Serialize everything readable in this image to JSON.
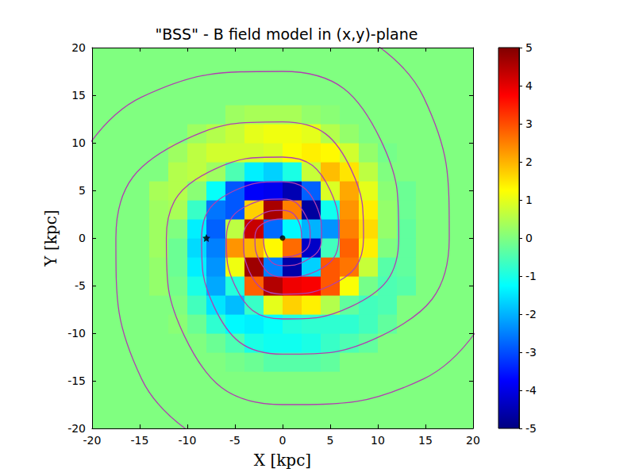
{
  "chart_data": {
    "type": "heatmap",
    "title": "\"BSS\" - B field model in (x,y)-plane",
    "x_label": "X [kpc]",
    "y_label": "Y [kpc]",
    "xlim": [
      -20,
      20
    ],
    "ylim": [
      -20,
      20
    ],
    "xticks": [
      -20,
      -15,
      -10,
      -5,
      0,
      5,
      10,
      15,
      20
    ],
    "yticks": [
      -20,
      -15,
      -10,
      -5,
      0,
      5,
      10,
      15,
      20
    ],
    "grid": false,
    "cells": {
      "x": [
        -19,
        -17,
        -15,
        -13,
        -11,
        -9,
        -7,
        -5,
        -3,
        -1,
        1,
        3,
        5,
        7,
        9,
        11,
        13,
        15,
        17,
        19
      ],
      "y": [
        -19,
        -17,
        -15,
        -13,
        -11,
        -9,
        -7,
        -5,
        -3,
        -1,
        1,
        3,
        5,
        7,
        9,
        11,
        13,
        15,
        17,
        19
      ],
      "z": [
        [
          0,
          0,
          0,
          0,
          0,
          0,
          0,
          0,
          0,
          0,
          0,
          0,
          0,
          0,
          0,
          0,
          0,
          0,
          0,
          0
        ],
        [
          0,
          0,
          0,
          0,
          0,
          0,
          0,
          0,
          0,
          0,
          0,
          0,
          0,
          0,
          0,
          0,
          0,
          0,
          0,
          0
        ],
        [
          0,
          0,
          0,
          0,
          0,
          0,
          0,
          0,
          0,
          0,
          0,
          0,
          0,
          0,
          0,
          0,
          0,
          0,
          0,
          0
        ],
        [
          0,
          0,
          0,
          0,
          0,
          0,
          0,
          -0.1,
          -0.2,
          -0.4,
          -0.4,
          -0.4,
          -0.3,
          0,
          0,
          0,
          0,
          0,
          0,
          0
        ],
        [
          0,
          0,
          0,
          0,
          0,
          0,
          -0.2,
          -0.5,
          -1.0,
          -1.1,
          -1.1,
          -1.0,
          -0.7,
          -0.5,
          -0.3,
          0,
          0,
          0,
          0,
          0
        ],
        [
          0,
          0,
          0,
          0,
          0.1,
          -0.2,
          -0.8,
          -1.3,
          -1.4,
          -1.2,
          -0.9,
          -0.8,
          -0.8,
          -0.8,
          -0.6,
          -0.3,
          0,
          0,
          0,
          0
        ],
        [
          0,
          0,
          0,
          0,
          0,
          -0.6,
          -1.5,
          -1.9,
          -0.7,
          1.0,
          1.7,
          1.4,
          0.5,
          -0.3,
          -0.6,
          -0.5,
          0,
          0,
          0,
          0
        ],
        [
          0,
          0,
          0,
          0.2,
          -0.1,
          -1.0,
          -2.1,
          -0.9,
          2.8,
          4.5,
          3.9,
          3.8,
          2.9,
          1.2,
          -0.1,
          -0.5,
          -0.4,
          0,
          0,
          0
        ],
        [
          0,
          0,
          0,
          0.2,
          -0.2,
          -1.4,
          -2.3,
          1.1,
          4.7,
          -2.5,
          -4.6,
          -1.7,
          2.9,
          2.6,
          0.7,
          -0.4,
          -0.3,
          0,
          0,
          0
        ],
        [
          0,
          0,
          0,
          0.3,
          -0.2,
          -1.6,
          -2.5,
          2.3,
          2.0,
          1.3,
          2.7,
          -4.3,
          -0.6,
          2.8,
          1.4,
          0,
          -0.3,
          0,
          0,
          0
        ],
        [
          0,
          0,
          0,
          0.3,
          0,
          -1.4,
          -2.8,
          0.6,
          4.3,
          -2.7,
          -1.3,
          -2.0,
          -2.3,
          2.5,
          1.6,
          0.2,
          -0.3,
          0,
          0,
          0
        ],
        [
          0,
          0,
          0,
          0.3,
          0.4,
          -0.7,
          -2.6,
          -2.9,
          1.7,
          4.6,
          2.5,
          -4.7,
          -1.1,
          2.3,
          1.4,
          0.2,
          -0.2,
          0,
          0,
          0
        ],
        [
          0,
          0,
          0,
          0.4,
          0.5,
          0.1,
          -1.2,
          -2.9,
          -3.8,
          -3.9,
          -4.5,
          -2.8,
          0.9,
          2.1,
          1.0,
          0.1,
          -0.2,
          0,
          0,
          0
        ],
        [
          0,
          0,
          0,
          0,
          0.5,
          0.6,
          0.3,
          -0.5,
          -1.4,
          -1.7,
          -1.0,
          0.7,
          1.9,
          1.5,
          0.6,
          0,
          0,
          0,
          0,
          0
        ],
        [
          0,
          0,
          0,
          0,
          0.3,
          0.6,
          0.8,
          0.8,
          0.8,
          0.9,
          1.2,
          1.4,
          1.3,
          0.8,
          0.2,
          -0.1,
          0,
          0,
          0,
          0
        ],
        [
          0,
          0,
          0,
          0,
          0,
          0.3,
          0.5,
          0.7,
          1.0,
          1.1,
          1.1,
          1.0,
          0.5,
          0.2,
          0,
          0,
          0,
          0,
          0,
          0
        ],
        [
          0,
          0,
          0,
          0,
          0,
          0,
          0,
          0.3,
          0.4,
          0.4,
          0.4,
          0.2,
          0.1,
          0,
          0,
          0,
          0,
          0,
          0,
          0
        ],
        [
          0,
          0,
          0,
          0,
          0,
          0,
          0,
          0,
          0,
          0,
          0,
          0,
          0,
          0,
          0,
          0,
          0,
          0,
          0,
          0
        ],
        [
          0,
          0,
          0,
          0,
          0,
          0,
          0,
          0,
          0,
          0,
          0,
          0,
          0,
          0,
          0,
          0,
          0,
          0,
          0,
          0
        ],
        [
          0,
          0,
          0,
          0,
          0,
          0,
          0,
          0,
          0,
          0,
          0,
          0,
          0,
          0,
          0,
          0,
          0,
          0,
          0,
          0
        ]
      ]
    },
    "colorbar": {
      "lim": [
        -5,
        5
      ],
      "ticks": [
        -5,
        -4,
        -3,
        -2,
        -1,
        0,
        1,
        2,
        3,
        4,
        5
      ]
    },
    "streamlines": [
      {
        "color": "#b040b0",
        "points": [
          [
            2,
            0
          ],
          [
            1.7,
            1.7
          ],
          [
            0,
            2.9
          ],
          [
            -2.4,
            2.4
          ],
          [
            -4.1,
            0
          ],
          [
            -3.5,
            -3.5
          ],
          [
            0,
            -5.9
          ],
          [
            5.0,
            -5.0
          ],
          [
            8.5,
            0
          ],
          [
            7.2,
            7.2
          ],
          [
            0,
            12.2
          ],
          [
            -10.3,
            10.3
          ],
          [
            -17.5,
            0
          ],
          [
            -14.8,
            -14.8
          ],
          [
            0,
            -25.1
          ]
        ]
      },
      {
        "color": "#b040b0",
        "points": [
          [
            0,
            2
          ],
          [
            -1.7,
            1.7
          ],
          [
            -2.9,
            0
          ],
          [
            -2.4,
            -2.4
          ],
          [
            0,
            -4.1
          ],
          [
            3.5,
            -3.5
          ],
          [
            5.9,
            0
          ],
          [
            5.0,
            5.0
          ],
          [
            0,
            8.5
          ],
          [
            -7.2,
            7.2
          ],
          [
            -12.2,
            0
          ],
          [
            -10.3,
            -10.3
          ],
          [
            0,
            -17.5
          ],
          [
            14.8,
            -14.8
          ],
          [
            25.1,
            0
          ]
        ]
      },
      {
        "color": "#b040b0",
        "points": [
          [
            -2,
            0
          ],
          [
            -1.7,
            -1.7
          ],
          [
            0,
            -2.9
          ],
          [
            2.4,
            -2.4
          ],
          [
            4.1,
            0
          ],
          [
            3.5,
            3.5
          ],
          [
            0,
            5.9
          ],
          [
            -5.0,
            5.0
          ],
          [
            -8.5,
            0
          ],
          [
            -7.2,
            -7.2
          ],
          [
            0,
            -12.2
          ],
          [
            10.3,
            -10.3
          ],
          [
            17.5,
            0
          ],
          [
            14.8,
            14.8
          ],
          [
            0,
            25.1
          ]
        ]
      },
      {
        "color": "#b040b0",
        "points": [
          [
            0,
            -2
          ],
          [
            1.7,
            -1.7
          ],
          [
            2.9,
            0
          ],
          [
            2.4,
            2.4
          ],
          [
            0,
            4.1
          ],
          [
            -3.5,
            3.5
          ],
          [
            -5.9,
            0
          ],
          [
            -5.0,
            -5.0
          ],
          [
            0,
            -8.5
          ],
          [
            7.2,
            -7.2
          ],
          [
            12.2,
            0
          ],
          [
            10.3,
            10.3
          ],
          [
            0,
            17.5
          ],
          [
            -14.8,
            14.8
          ],
          [
            -25.1,
            0
          ]
        ]
      }
    ],
    "markers": [
      {
        "x": -8,
        "y": 0,
        "marker": "star",
        "color": "#000000"
      },
      {
        "x": 0,
        "y": 0,
        "marker": "circle",
        "color": "#000000"
      }
    ]
  }
}
